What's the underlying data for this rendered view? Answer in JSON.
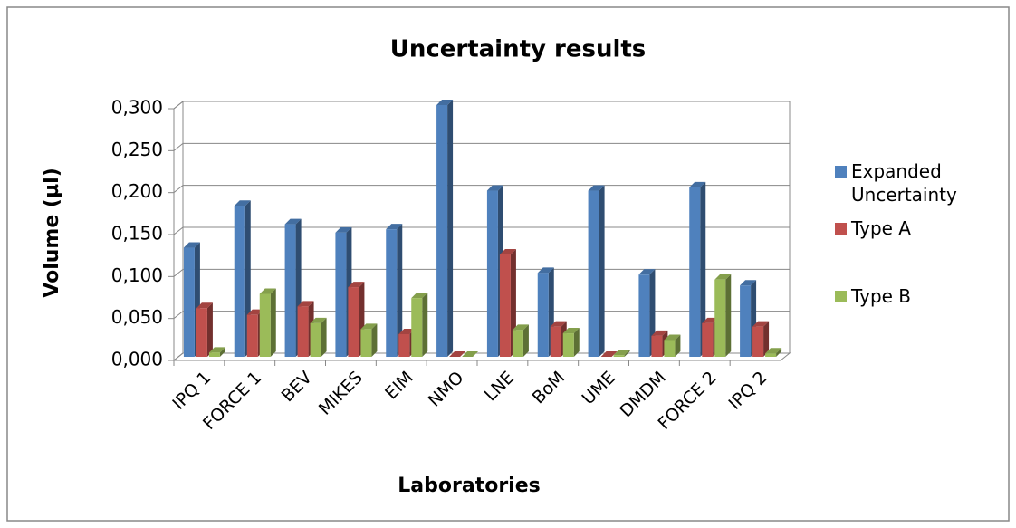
{
  "chart_data": {
    "type": "bar",
    "title": "Uncertainty results",
    "xlabel": "Laboratories",
    "ylabel": "Volume (µl)",
    "categories": [
      "IPQ 1",
      "FORCE 1",
      "BEV",
      "MIKES",
      "EIM",
      "NMO",
      "LNE",
      "BoM",
      "UME",
      "DMDM",
      "FORCE 2",
      "IPQ 2"
    ],
    "series": [
      {
        "name": "Expanded Uncertainty",
        "color": "#4f81bd",
        "values": [
          0.13,
          0.18,
          0.158,
          0.148,
          0.152,
          0.3,
          0.198,
          0.1,
          0.198,
          0.098,
          0.202,
          0.085
        ]
      },
      {
        "name": "Type A",
        "color": "#c0504d",
        "values": [
          0.058,
          0.05,
          0.06,
          0.083,
          0.027,
          0.0,
          0.122,
          0.036,
          0.0,
          0.025,
          0.04,
          0.036
        ]
      },
      {
        "name": "Type B",
        "color": "#9bbb59",
        "values": [
          0.005,
          0.075,
          0.04,
          0.033,
          0.07,
          0.0,
          0.032,
          0.028,
          0.002,
          0.02,
          0.092,
          0.004
        ]
      }
    ],
    "ylim": [
      0,
      0.3
    ],
    "yticks": [
      {
        "value": 0,
        "label": "0,000"
      },
      {
        "value": 0.05,
        "label": "0,050"
      },
      {
        "value": 0.1,
        "label": "0,100"
      },
      {
        "value": 0.15,
        "label": "0,150"
      },
      {
        "value": 0.2,
        "label": "0,200"
      },
      {
        "value": 0.25,
        "label": "0,250"
      },
      {
        "value": 0.3,
        "label": "0,300"
      }
    ],
    "grid": true,
    "legend": "right"
  }
}
